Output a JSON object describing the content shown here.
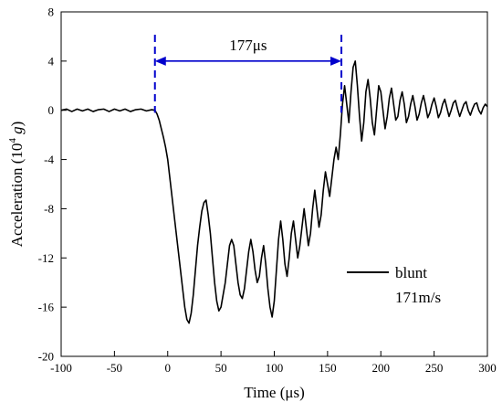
{
  "chart_data": {
    "type": "line",
    "xlabel": "Time (μs)",
    "ylabel_main": "Acceleration (10",
    "ylabel_exp": "4",
    "ylabel_unit": " g",
    "ylabel_close": ")",
    "xlim": [
      -100,
      300
    ],
    "ylim": [
      -20,
      8
    ],
    "xticks": [
      -100,
      -50,
      0,
      50,
      100,
      150,
      200,
      250,
      300
    ],
    "yticks": [
      -20,
      -16,
      -12,
      -8,
      -4,
      0,
      4,
      8
    ],
    "legend": {
      "placement": "right-lower",
      "entries": [
        "blunt",
        "171m/s"
      ]
    },
    "annotation": {
      "text": "177μs",
      "x_start": -12,
      "x_end": 163,
      "y": 4
    },
    "series": [
      {
        "name": "blunt",
        "color": "#000000",
        "points": [
          [
            -100,
            0.0
          ],
          [
            -95,
            0.1
          ],
          [
            -90,
            -0.1
          ],
          [
            -85,
            0.1
          ],
          [
            -80,
            -0.05
          ],
          [
            -75,
            0.1
          ],
          [
            -70,
            -0.1
          ],
          [
            -65,
            0.05
          ],
          [
            -60,
            0.1
          ],
          [
            -55,
            -0.1
          ],
          [
            -50,
            0.1
          ],
          [
            -45,
            -0.05
          ],
          [
            -40,
            0.1
          ],
          [
            -35,
            -0.1
          ],
          [
            -30,
            0.05
          ],
          [
            -25,
            0.1
          ],
          [
            -20,
            -0.05
          ],
          [
            -15,
            0.05
          ],
          [
            -12,
            0.0
          ],
          [
            -10,
            -0.3
          ],
          [
            -8,
            -0.8
          ],
          [
            -6,
            -1.5
          ],
          [
            -4,
            -2.2
          ],
          [
            -2,
            -3.0
          ],
          [
            0,
            -4.0
          ],
          [
            2,
            -5.5
          ],
          [
            4,
            -7.0
          ],
          [
            6,
            -8.5
          ],
          [
            8,
            -10.0
          ],
          [
            10,
            -11.5
          ],
          [
            12,
            -13.0
          ],
          [
            14,
            -14.5
          ],
          [
            16,
            -16.0
          ],
          [
            18,
            -17.0
          ],
          [
            20,
            -17.3
          ],
          [
            22,
            -16.5
          ],
          [
            24,
            -15.0
          ],
          [
            26,
            -13.0
          ],
          [
            28,
            -11.0
          ],
          [
            30,
            -9.5
          ],
          [
            32,
            -8.2
          ],
          [
            34,
            -7.5
          ],
          [
            36,
            -7.3
          ],
          [
            38,
            -8.5
          ],
          [
            40,
            -10.0
          ],
          [
            42,
            -12.0
          ],
          [
            44,
            -14.0
          ],
          [
            46,
            -15.5
          ],
          [
            48,
            -16.3
          ],
          [
            50,
            -16.0
          ],
          [
            52,
            -15.0
          ],
          [
            54,
            -14.0
          ],
          [
            56,
            -12.5
          ],
          [
            58,
            -11.0
          ],
          [
            60,
            -10.5
          ],
          [
            62,
            -11.0
          ],
          [
            64,
            -12.5
          ],
          [
            66,
            -14.0
          ],
          [
            68,
            -15.0
          ],
          [
            70,
            -15.3
          ],
          [
            72,
            -14.5
          ],
          [
            74,
            -13.0
          ],
          [
            76,
            -11.5
          ],
          [
            78,
            -10.5
          ],
          [
            80,
            -11.5
          ],
          [
            82,
            -13.0
          ],
          [
            84,
            -14.0
          ],
          [
            86,
            -13.5
          ],
          [
            88,
            -12.0
          ],
          [
            90,
            -11.0
          ],
          [
            92,
            -12.5
          ],
          [
            94,
            -14.5
          ],
          [
            96,
            -16.0
          ],
          [
            98,
            -16.8
          ],
          [
            100,
            -15.5
          ],
          [
            102,
            -13.0
          ],
          [
            104,
            -10.5
          ],
          [
            106,
            -9.0
          ],
          [
            108,
            -10.5
          ],
          [
            110,
            -12.5
          ],
          [
            112,
            -13.5
          ],
          [
            114,
            -12.0
          ],
          [
            116,
            -10.0
          ],
          [
            118,
            -9.0
          ],
          [
            120,
            -10.5
          ],
          [
            122,
            -12.0
          ],
          [
            124,
            -11.0
          ],
          [
            126,
            -9.5
          ],
          [
            128,
            -8.0
          ],
          [
            130,
            -9.5
          ],
          [
            132,
            -11.0
          ],
          [
            134,
            -10.0
          ],
          [
            136,
            -8.0
          ],
          [
            138,
            -6.5
          ],
          [
            140,
            -8.0
          ],
          [
            142,
            -9.5
          ],
          [
            144,
            -8.5
          ],
          [
            146,
            -6.5
          ],
          [
            148,
            -5.0
          ],
          [
            150,
            -6.0
          ],
          [
            152,
            -7.0
          ],
          [
            154,
            -5.5
          ],
          [
            156,
            -4.0
          ],
          [
            158,
            -3.0
          ],
          [
            160,
            -4.0
          ],
          [
            162,
            -2.0
          ],
          [
            164,
            0.5
          ],
          [
            166,
            2.0
          ],
          [
            168,
            0.5
          ],
          [
            170,
            -1.0
          ],
          [
            172,
            1.5
          ],
          [
            174,
            3.5
          ],
          [
            176,
            4.0
          ],
          [
            178,
            2.0
          ],
          [
            180,
            -0.5
          ],
          [
            182,
            -2.5
          ],
          [
            184,
            -1.0
          ],
          [
            186,
            1.5
          ],
          [
            188,
            2.5
          ],
          [
            190,
            1.0
          ],
          [
            192,
            -1.0
          ],
          [
            194,
            -2.0
          ],
          [
            196,
            0.0
          ],
          [
            198,
            2.0
          ],
          [
            200,
            1.5
          ],
          [
            202,
            0.0
          ],
          [
            204,
            -1.5
          ],
          [
            206,
            -0.5
          ],
          [
            208,
            1.0
          ],
          [
            210,
            1.8
          ],
          [
            212,
            0.5
          ],
          [
            214,
            -0.8
          ],
          [
            216,
            -0.5
          ],
          [
            218,
            0.8
          ],
          [
            220,
            1.5
          ],
          [
            222,
            0.5
          ],
          [
            224,
            -1.0
          ],
          [
            226,
            -0.5
          ],
          [
            228,
            0.5
          ],
          [
            230,
            1.2
          ],
          [
            232,
            0.3
          ],
          [
            234,
            -0.8
          ],
          [
            236,
            -0.3
          ],
          [
            238,
            0.6
          ],
          [
            240,
            1.2
          ],
          [
            242,
            0.4
          ],
          [
            244,
            -0.6
          ],
          [
            246,
            -0.2
          ],
          [
            248,
            0.5
          ],
          [
            250,
            1.0
          ],
          [
            252,
            0.3
          ],
          [
            254,
            -0.6
          ],
          [
            256,
            -0.2
          ],
          [
            258,
            0.5
          ],
          [
            260,
            0.9
          ],
          [
            262,
            0.2
          ],
          [
            264,
            -0.5
          ],
          [
            266,
            0.0
          ],
          [
            268,
            0.6
          ],
          [
            270,
            0.8
          ],
          [
            272,
            0.1
          ],
          [
            274,
            -0.5
          ],
          [
            276,
            0.0
          ],
          [
            278,
            0.5
          ],
          [
            280,
            0.7
          ],
          [
            282,
            0.0
          ],
          [
            284,
            -0.4
          ],
          [
            286,
            0.1
          ],
          [
            288,
            0.5
          ],
          [
            290,
            0.6
          ],
          [
            292,
            0.0
          ],
          [
            294,
            -0.3
          ],
          [
            296,
            0.2
          ],
          [
            298,
            0.5
          ],
          [
            300,
            0.3
          ]
        ]
      }
    ]
  }
}
